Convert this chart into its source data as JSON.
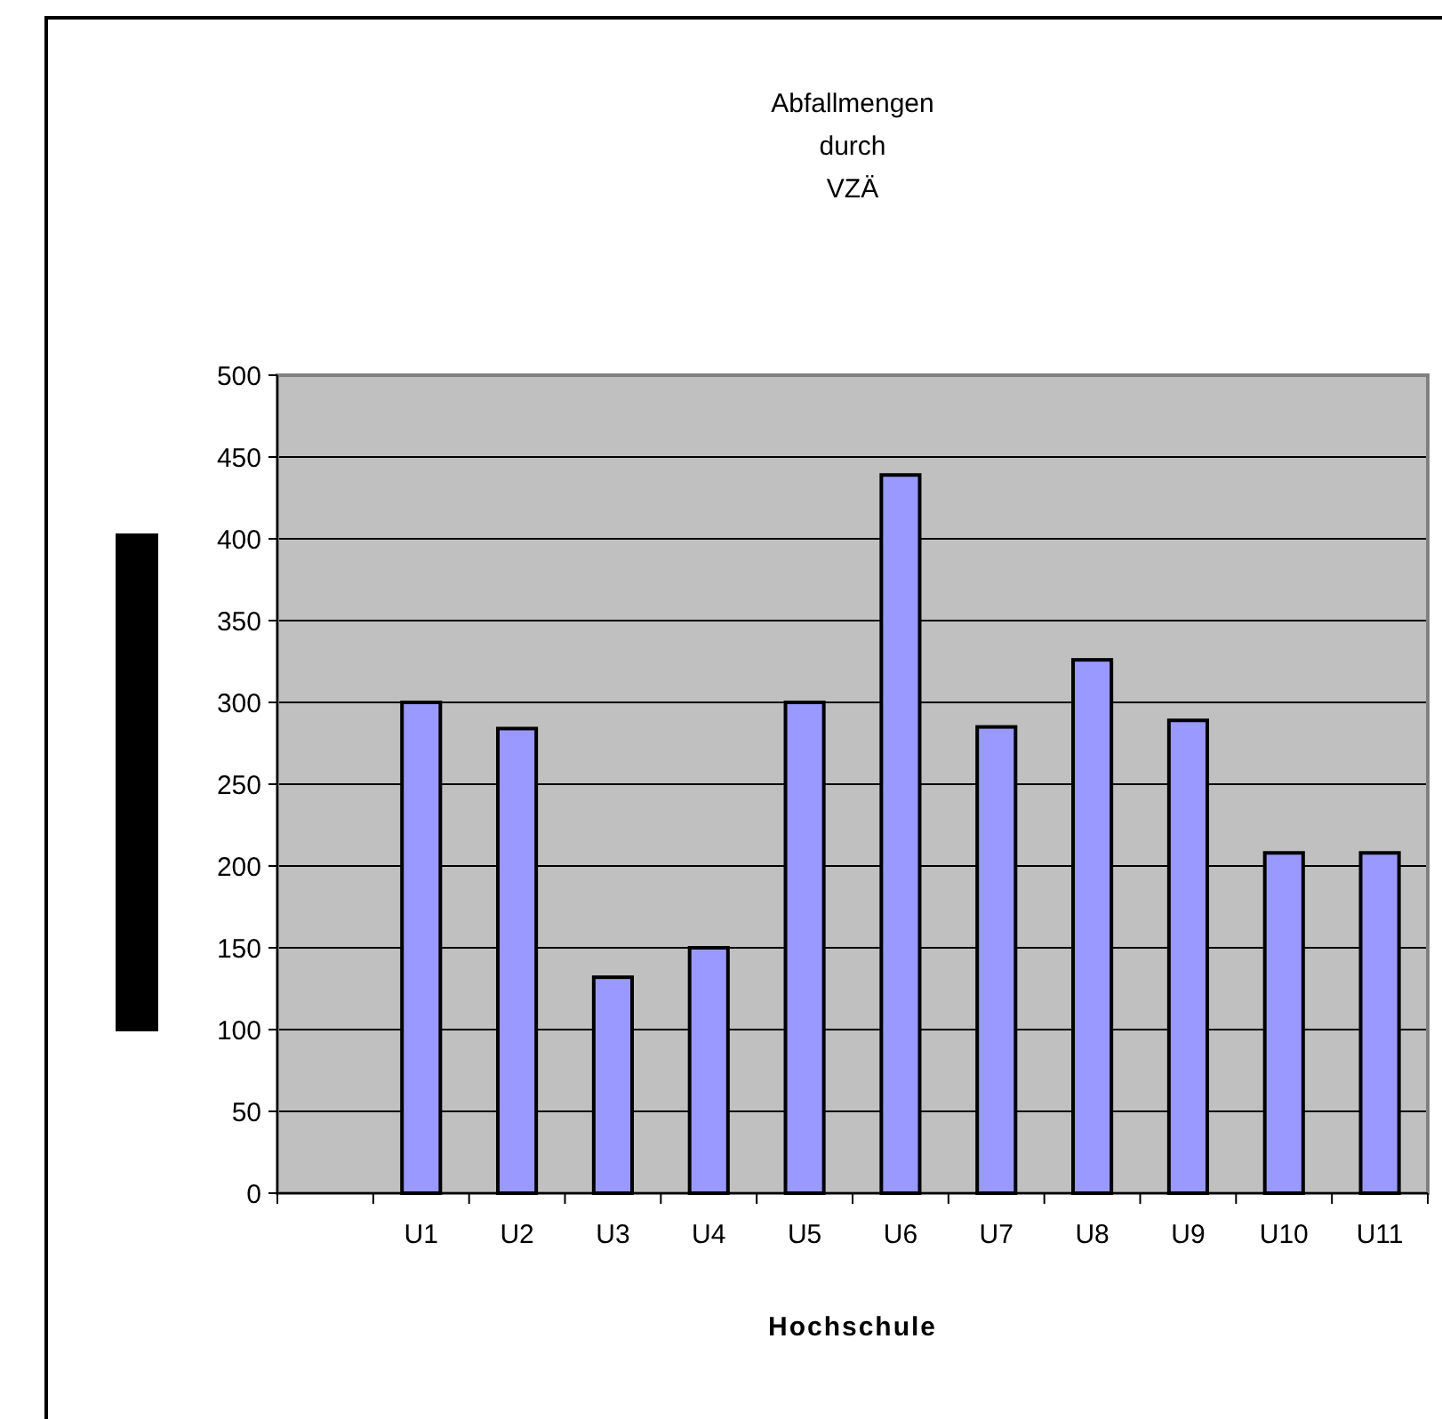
{
  "chart_data": {
    "type": "bar",
    "title": "Abfallmengen durch VZÄ",
    "xlabel": "Hochschule",
    "categories": [
      null,
      "U1",
      "U2",
      "U3",
      "U4",
      "U5",
      "U6",
      "U7",
      "U8",
      "U9",
      "U10",
      "U11"
    ],
    "values": [
      null,
      300,
      284,
      132,
      150,
      300,
      439,
      285,
      326,
      289,
      208,
      208
    ],
    "color": "#9999ff",
    "ylim": [
      0,
      500
    ],
    "yticks": [
      0,
      50,
      100,
      150,
      200,
      250,
      300,
      350,
      400,
      450,
      500
    ],
    "grid": "y"
  }
}
